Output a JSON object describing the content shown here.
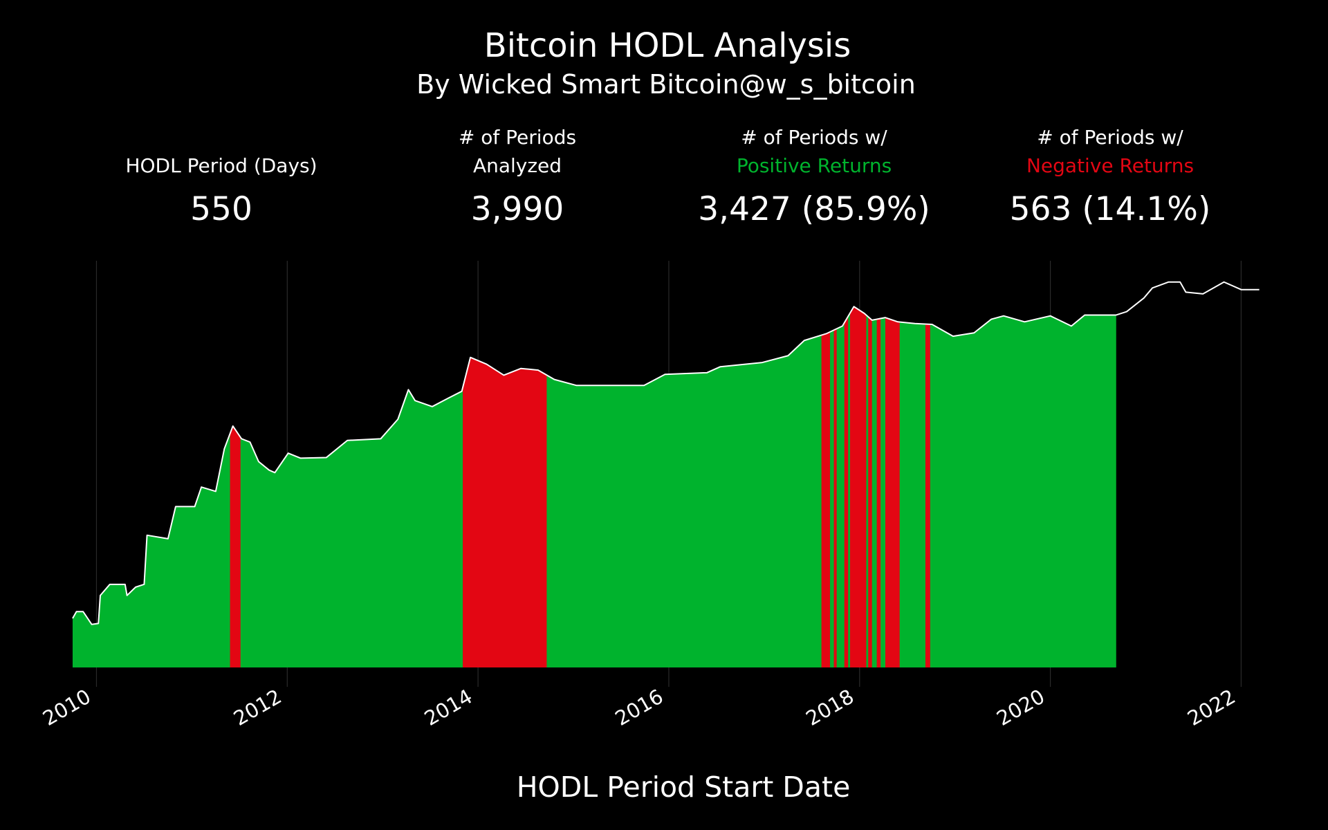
{
  "chart_data": {
    "type": "hodl-area",
    "title": "Bitcoin HODL Analysis",
    "subtitle": "By Wicked Smart Bitcoin@w_s_bitcoin",
    "xlabel": "HODL Period Start Date",
    "log_scale": true,
    "grid": true,
    "line_color": "#ffffff",
    "positive_color": "#00b32d",
    "negative_color": "#e30613",
    "xlim": [
      2009.75,
      2022.2
    ],
    "xticks": [
      2010,
      2012,
      2014,
      2016,
      2018,
      2020,
      2022
    ],
    "ylim": [
      7.75e-05,
      200000
    ],
    "x": [
      2009.75,
      2009.79,
      2009.86,
      2009.95,
      2010.02,
      2010.04,
      2010.14,
      2010.3,
      2010.32,
      2010.41,
      2010.5,
      2010.53,
      2010.75,
      2010.83,
      2011.03,
      2011.1,
      2011.25,
      2011.34,
      2011.43,
      2011.52,
      2011.61,
      2011.7,
      2011.81,
      2011.87,
      2012.01,
      2012.14,
      2012.41,
      2012.63,
      2012.98,
      2013.16,
      2013.27,
      2013.34,
      2013.52,
      2013.69,
      2013.83,
      2013.92,
      2014.09,
      2014.27,
      2014.45,
      2014.63,
      2014.8,
      2015.03,
      2015.2,
      2015.56,
      2015.74,
      2015.96,
      2016.4,
      2016.54,
      2016.98,
      2017.25,
      2017.42,
      2017.65,
      2017.82,
      2017.94,
      2018.05,
      2018.13,
      2018.27,
      2018.4,
      2018.58,
      2018.76,
      2018.98,
      2019.2,
      2019.38,
      2019.51,
      2019.73,
      2020.0,
      2020.22,
      2020.36,
      2020.69,
      2020.8,
      2020.98,
      2021.07,
      2021.24,
      2021.36,
      2021.42,
      2021.6,
      2021.82,
      2022.0,
      2022.19
    ],
    "values": [
      0.00106,
      0.00152,
      0.00152,
      0.00077,
      0.00081,
      0.0036,
      0.0065,
      0.0065,
      0.0036,
      0.0056,
      0.0065,
      0.089,
      0.074,
      0.41,
      0.41,
      1.16,
      0.92,
      8.85,
      29.9,
      15.2,
      12.7,
      4.5,
      2.86,
      2.5,
      7.06,
      5.4,
      5.6,
      13.9,
      15.2,
      43,
      208,
      116,
      84.5,
      133,
      191,
      1160,
      808,
      450,
      644,
      589,
      358,
      261,
      261,
      261,
      261,
      470,
      514,
      706,
      885,
      1270,
      2860,
      4100,
      6170,
      17400,
      12100,
      8450,
      9680,
      7720,
      7060,
      6750,
      3580,
      4290,
      8850,
      10600,
      7720,
      10600,
      6170,
      11090,
      11090,
      13300,
      27400,
      47000,
      64400,
      64400,
      37500,
      34300,
      64400,
      43000,
      43000
    ],
    "analysis_end": 2020.69,
    "negative_periods": [
      [
        2011.4,
        2011.51
      ],
      [
        2013.84,
        2014.72
      ],
      [
        2017.6,
        2017.69
      ],
      [
        2017.73,
        2017.76
      ],
      [
        2017.84,
        2017.88
      ],
      [
        2017.9,
        2018.07
      ],
      [
        2018.09,
        2018.13
      ],
      [
        2018.18,
        2018.22
      ],
      [
        2018.27,
        2018.42
      ],
      [
        2018.69,
        2018.74
      ]
    ]
  },
  "stats": [
    {
      "lines": [
        "HODL Period (Days)"
      ],
      "value": "550"
    },
    {
      "lines": [
        "# of Periods",
        "Analyzed"
      ],
      "value": "3,990"
    },
    {
      "lines": [
        "# of Periods w/"
      ],
      "highlight": "Positive Returns",
      "highlight_color": "#00b32d",
      "value": "3,427 (85.9%)"
    },
    {
      "lines": [
        "# of Periods w/"
      ],
      "highlight": "Negative Returns",
      "highlight_color": "#e30613",
      "value": "563 (14.1%)"
    }
  ]
}
